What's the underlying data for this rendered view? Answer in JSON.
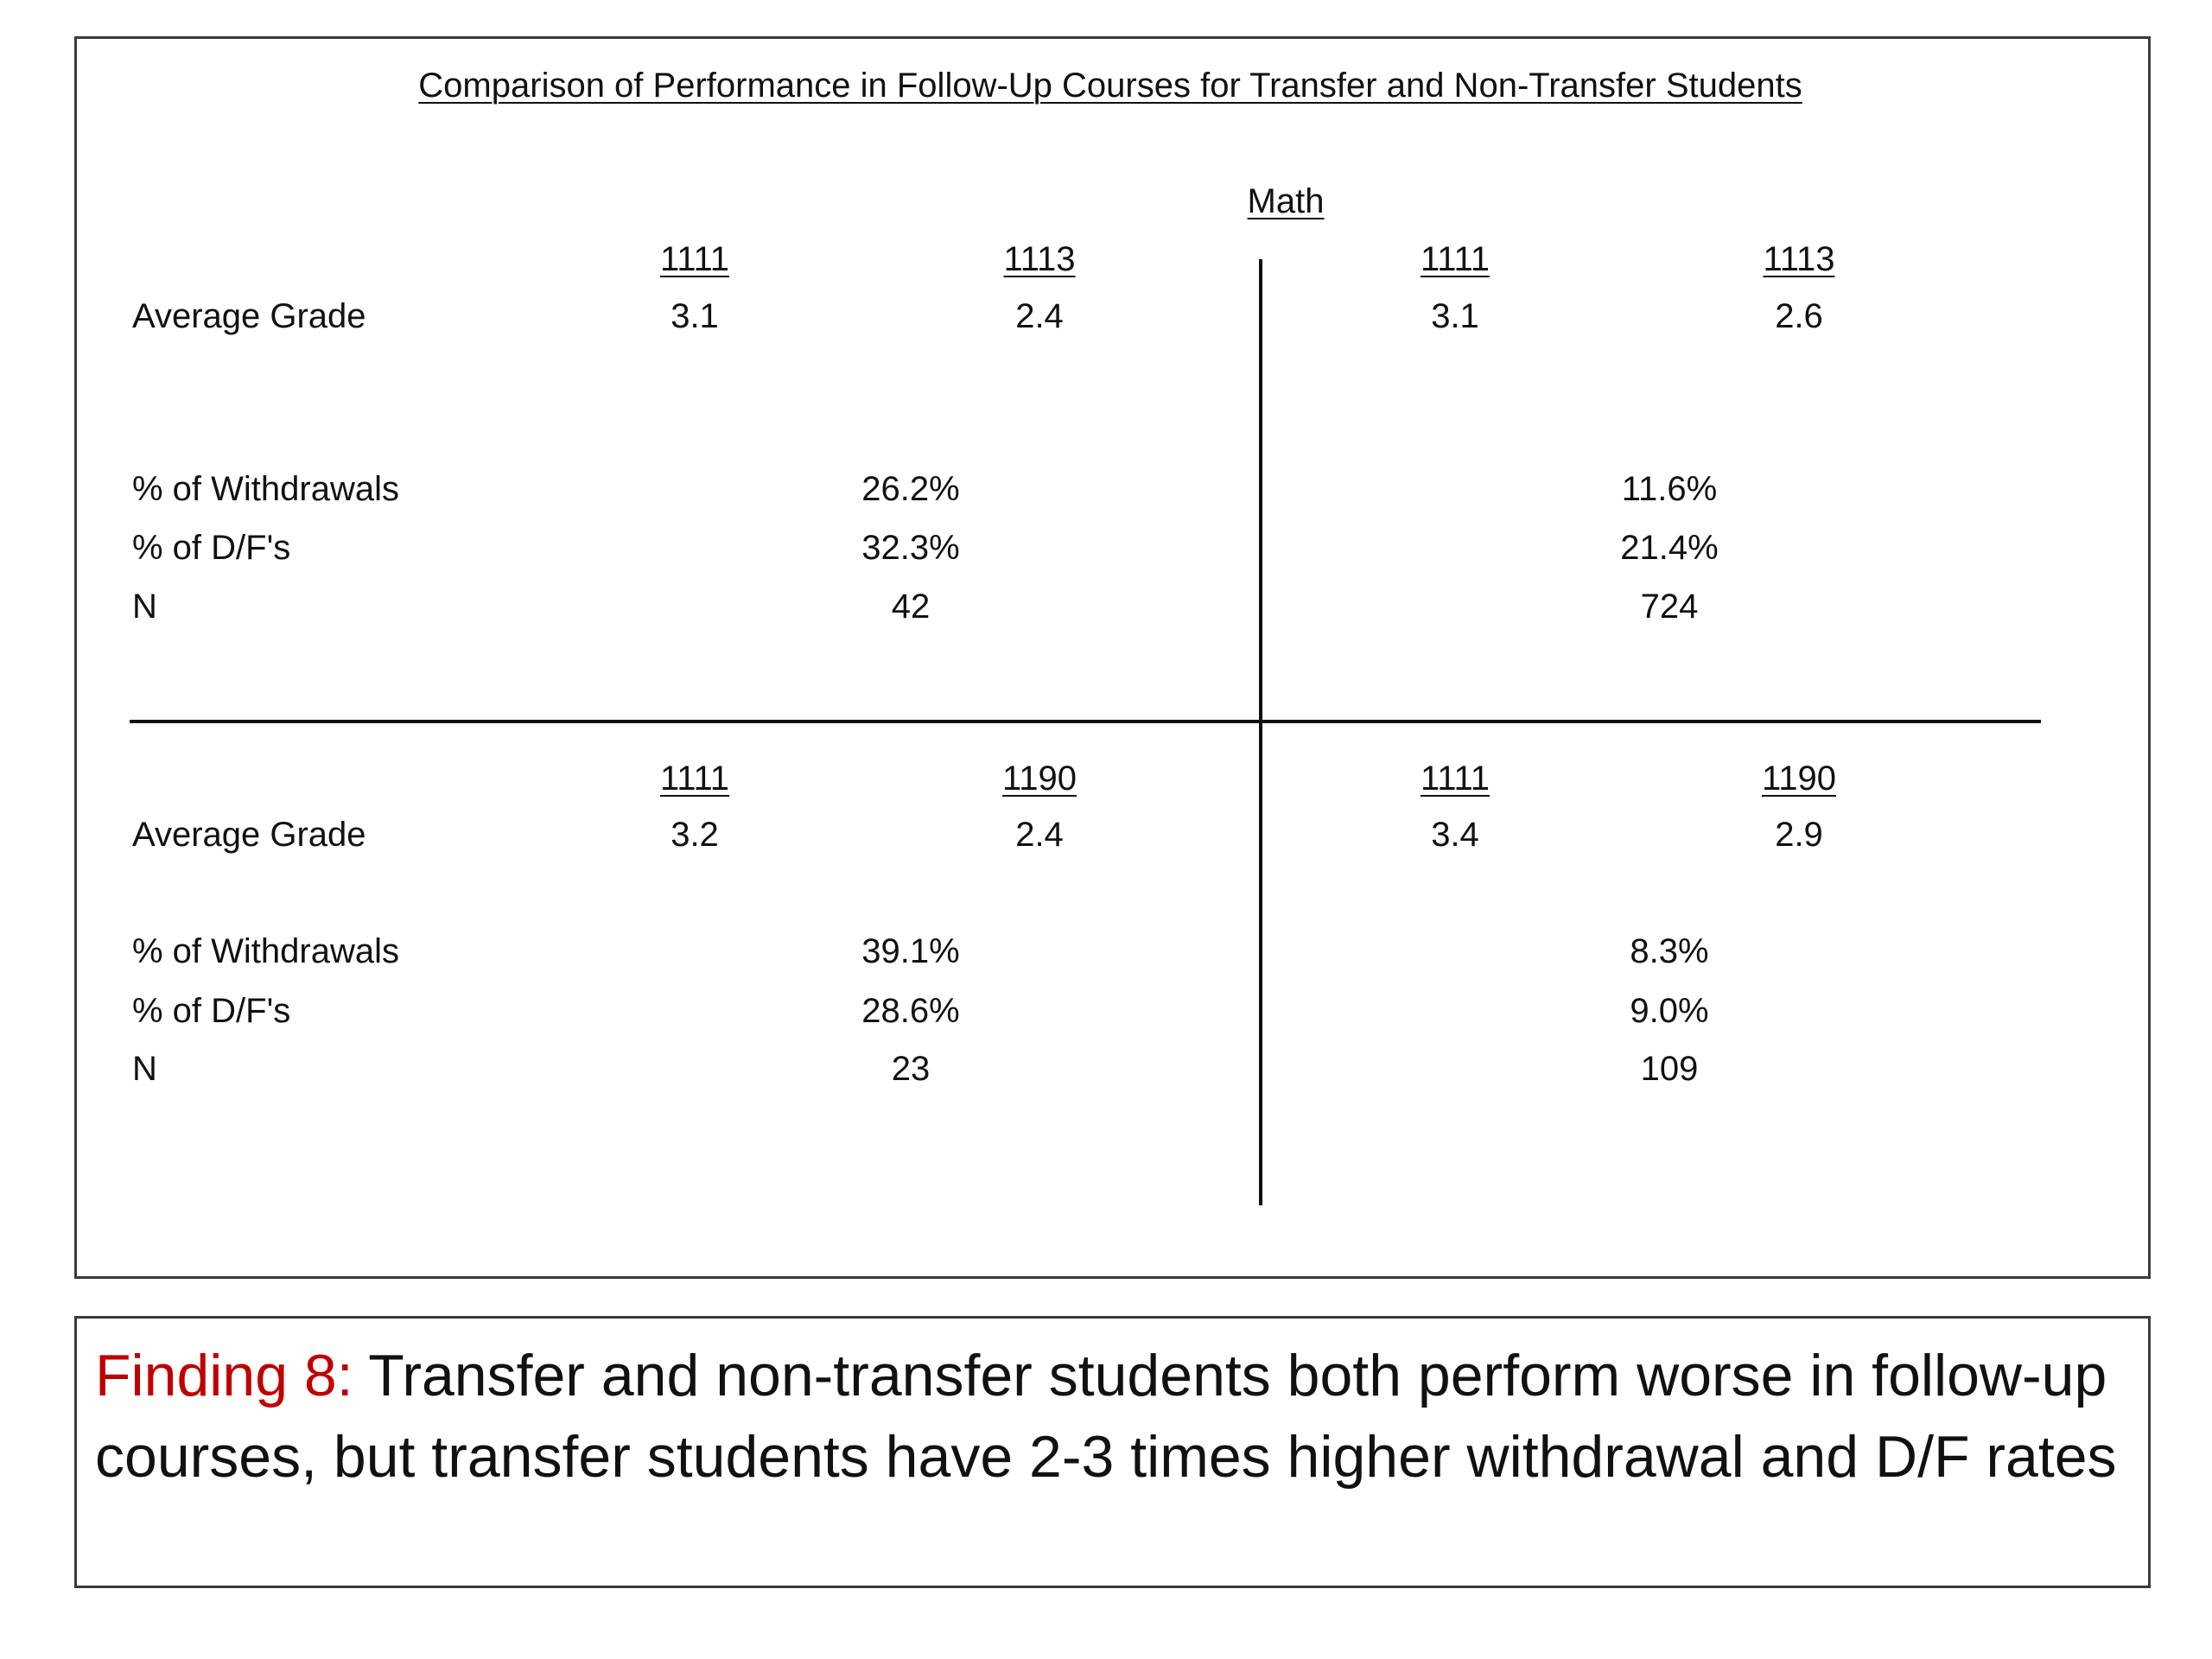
{
  "title": "Comparison of Performance in Follow-Up Courses for Transfer and Non-Transfer Students",
  "subject": "Math",
  "row_labels": {
    "average_grade": "Average Grade",
    "withdrawals": "% of Withdrawals",
    "df": "% of D/F's",
    "n": "N"
  },
  "quadrants": {
    "top_left": {
      "course_a": "1111",
      "course_b": "1113",
      "grade_a": "3.1",
      "grade_b": "2.4",
      "withdrawals": "26.2%",
      "df": "32.3%",
      "n": "42"
    },
    "top_right": {
      "course_a": "1111",
      "course_b": "1113",
      "grade_a": "3.1",
      "grade_b": "2.6",
      "withdrawals": "11.6%",
      "df": "21.4%",
      "n": "724"
    },
    "bottom_left": {
      "course_a": "1111",
      "course_b": "1190",
      "grade_a": "3.2",
      "grade_b": "2.4",
      "withdrawals": "39.1%",
      "df": "28.6%",
      "n": "23"
    },
    "bottom_right": {
      "course_a": "1111",
      "course_b": "1190",
      "grade_a": "3.4",
      "grade_b": "2.9",
      "withdrawals": "8.3%",
      "df": "9.0%",
      "n": "109"
    }
  },
  "finding": {
    "label": "Finding 8:",
    "text": " Transfer and non-transfer students both perform worse in follow-up courses, but transfer students have 2-3 times higher withdrawal and D/F rates",
    "label_color": "#c00000"
  }
}
